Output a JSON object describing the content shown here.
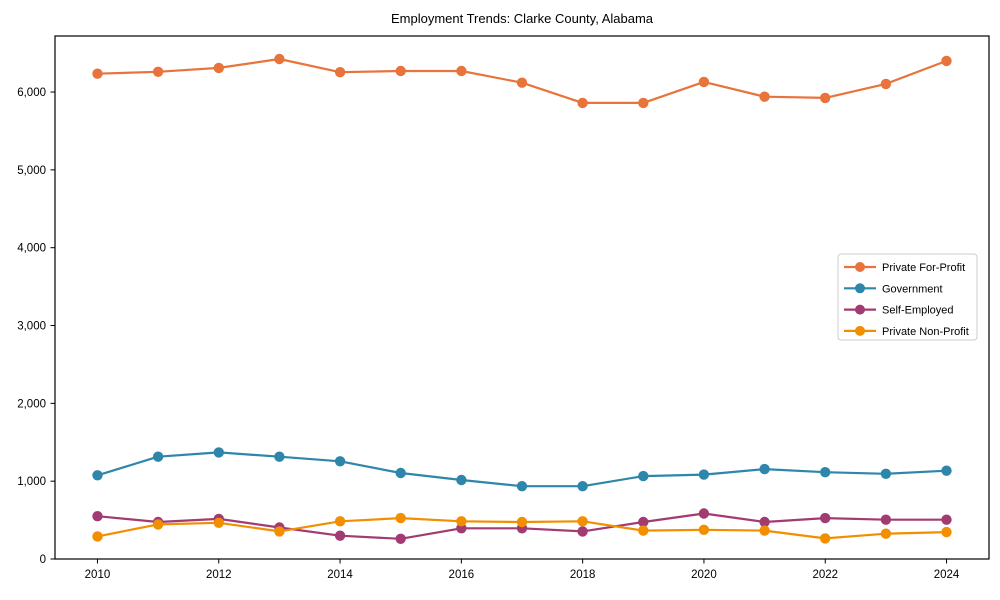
{
  "chart_data": {
    "type": "line",
    "title": "Employment Trends: Clarke County, Alabama",
    "xlabel": "",
    "ylabel": "",
    "x": [
      2010,
      2011,
      2012,
      2013,
      2014,
      2015,
      2016,
      2017,
      2018,
      2019,
      2020,
      2021,
      2022,
      2023,
      2024
    ],
    "series": [
      {
        "name": "Private For-Profit",
        "color": "#E8743B",
        "values": [
          6235,
          6260,
          6310,
          6425,
          6255,
          6270,
          6270,
          6120,
          5860,
          5860,
          6130,
          5940,
          5925,
          6105,
          6400
        ]
      },
      {
        "name": "Government",
        "color": "#2E86AB",
        "values": [
          1075,
          1315,
          1370,
          1315,
          1255,
          1105,
          1015,
          935,
          935,
          1065,
          1085,
          1155,
          1115,
          1095,
          1135
        ]
      },
      {
        "name": "Self-Employed",
        "color": "#A23B72",
        "values": [
          550,
          475,
          515,
          405,
          300,
          260,
          395,
          395,
          355,
          475,
          585,
          475,
          525,
          505,
          505
        ]
      },
      {
        "name": "Private Non-Profit",
        "color": "#F18F01",
        "values": [
          290,
          445,
          465,
          355,
          485,
          525,
          485,
          475,
          485,
          365,
          375,
          365,
          265,
          325,
          345
        ]
      }
    ],
    "xticks": [
      2010,
      2012,
      2014,
      2016,
      2018,
      2020,
      2022,
      2024
    ],
    "xtick_labels": [
      "2010",
      "2012",
      "2014",
      "2016",
      "2018",
      "2020",
      "2022",
      "2024"
    ],
    "yticks": [
      0,
      1000,
      2000,
      3000,
      4000,
      5000,
      6000
    ],
    "ytick_labels": [
      "0",
      "1,000",
      "2,000",
      "3,000",
      "4,000",
      "5,000",
      "6,000"
    ],
    "xlim": [
      2009.3,
      2024.7
    ],
    "ylim": [
      0,
      6720
    ],
    "grid": false,
    "legend_position": "right",
    "axis_color": "#000000",
    "background_color": "#ffffff"
  }
}
